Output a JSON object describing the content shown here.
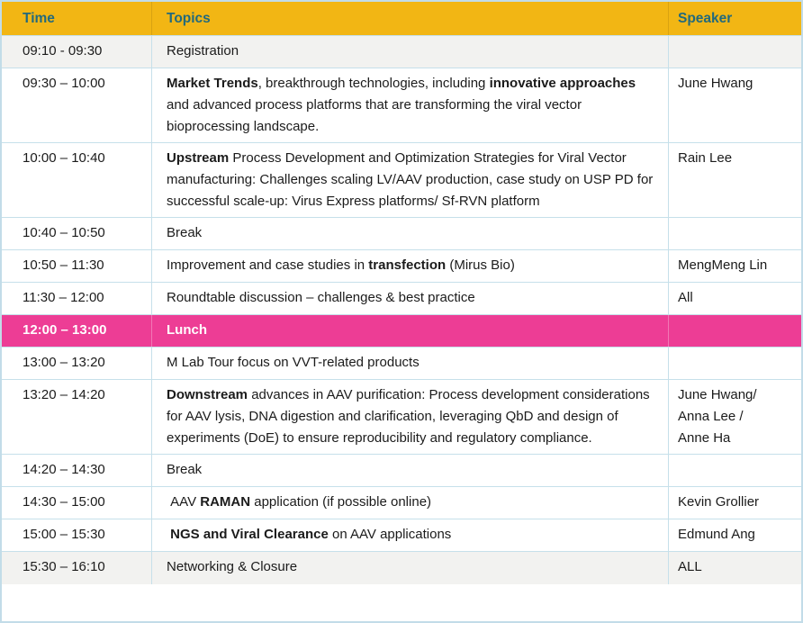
{
  "colors": {
    "header_bg": "#f2b614",
    "header_text": "#236a7c",
    "highlight_bg": "#ed3d95",
    "highlight_text": "#ffffff",
    "shaded_row_bg": "#f2f2f0",
    "border": "#c6e0ea",
    "body_text": "#1b1b1b"
  },
  "table": {
    "columns": [
      {
        "label": "Time"
      },
      {
        "label": "Topics"
      },
      {
        "label": "Speaker"
      }
    ],
    "rows": [
      {
        "time": "09:10 - 09:30",
        "topic_parts": [
          {
            "text": "Registration",
            "bold": false
          }
        ],
        "speaker": "",
        "shaded": true,
        "highlight": false
      },
      {
        "time": "09:30 – 10:00",
        "topic_parts": [
          {
            "text": "Market Trends",
            "bold": true
          },
          {
            "text": ", breakthrough technologies, including ",
            "bold": false
          },
          {
            "text": "innovative approaches",
            "bold": true
          },
          {
            "text": " and advanced process platforms that are transforming the viral vector bioprocessing landscape.",
            "bold": false
          }
        ],
        "speaker": "June Hwang",
        "shaded": false,
        "highlight": false
      },
      {
        "time": "10:00 – 10:40",
        "topic_parts": [
          {
            "text": "Upstream",
            "bold": true
          },
          {
            "text": " Process Development and Optimization Strategies for Viral Vector manufacturing: Challenges scaling LV/AAV production, case study on USP PD for successful scale-up: Virus Express platforms/ Sf-RVN platform",
            "bold": false
          }
        ],
        "speaker": "Rain Lee",
        "shaded": false,
        "highlight": false
      },
      {
        "time": "10:40 – 10:50",
        "topic_parts": [
          {
            "text": "Break",
            "bold": false
          }
        ],
        "speaker": "",
        "shaded": false,
        "highlight": false
      },
      {
        "time": "10:50 – 11:30",
        "topic_parts": [
          {
            "text": "Improvement and case studies in ",
            "bold": false
          },
          {
            "text": "transfection",
            "bold": true
          },
          {
            "text": " (Mirus Bio)",
            "bold": false
          }
        ],
        "speaker": "MengMeng Lin",
        "shaded": false,
        "highlight": false
      },
      {
        "time": "11:30 – 12:00",
        "topic_parts": [
          {
            "text": "Roundtable discussion – challenges & best practice",
            "bold": false
          }
        ],
        "speaker": "All",
        "shaded": false,
        "highlight": false
      },
      {
        "time": "12:00 – 13:00",
        "topic_parts": [
          {
            "text": "Lunch",
            "bold": true
          }
        ],
        "speaker": "",
        "shaded": false,
        "highlight": true
      },
      {
        "time": "13:00 – 13:20",
        "topic_parts": [
          {
            "text": "M Lab Tour focus on VVT-related products",
            "bold": false
          }
        ],
        "speaker": "",
        "shaded": false,
        "highlight": false
      },
      {
        "time": "13:20 – 14:20",
        "topic_parts": [
          {
            "text": "Downstream",
            "bold": true
          },
          {
            "text": " advances in AAV purification: Process development considerations for AAV lysis, DNA digestion and clarification, leveraging QbD and design of experiments (DoE) to ensure reproducibility and regulatory compliance.",
            "bold": false
          }
        ],
        "speaker": "June Hwang/\nAnna Lee /\nAnne Ha",
        "shaded": false,
        "highlight": false
      },
      {
        "time": "14:20 – 14:30",
        "topic_parts": [
          {
            "text": "Break",
            "bold": false
          }
        ],
        "speaker": "",
        "shaded": false,
        "highlight": false
      },
      {
        "time": "14:30 – 15:00",
        "topic_parts": [
          {
            "text": " AAV ",
            "bold": false
          },
          {
            "text": "RAMAN",
            "bold": true
          },
          {
            "text": " application (if possible online)",
            "bold": false
          }
        ],
        "speaker": "Kevin Grollier",
        "shaded": false,
        "highlight": false
      },
      {
        "time": "15:00 – 15:30",
        "topic_parts": [
          {
            "text": " ",
            "bold": false
          },
          {
            "text": "NGS and Viral Clearance",
            "bold": true
          },
          {
            "text": " on AAV applications",
            "bold": false
          }
        ],
        "speaker": "Edmund Ang",
        "shaded": false,
        "highlight": false
      },
      {
        "time": "15:30 – 16:10",
        "topic_parts": [
          {
            "text": "Networking & Closure",
            "bold": false
          }
        ],
        "speaker": "ALL",
        "shaded": true,
        "highlight": false
      }
    ]
  }
}
